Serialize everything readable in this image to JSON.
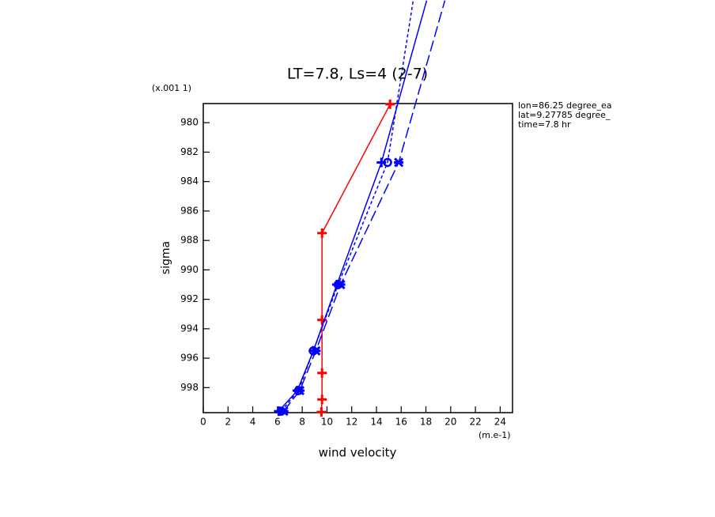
{
  "chart_data": {
    "type": "line",
    "title": "LT=7.8, Ls=4 (2-7)",
    "y_unit_label": "(x.001 1)",
    "ylabel": "sigma",
    "xlabel": "wind velocity",
    "x_unit_label": "(m.e-1)",
    "info": [
      "lon=86.25 degree_ea",
      "lat=9.27785 degree_",
      "time=7.8 hr"
    ],
    "xlim": [
      0,
      25
    ],
    "xticks": [
      0,
      2,
      4,
      6,
      8,
      10,
      12,
      14,
      16,
      18,
      20,
      22,
      24
    ],
    "ylim": [
      978.7,
      999.7
    ],
    "yticks": [
      980,
      982,
      984,
      986,
      988,
      990,
      992,
      994,
      996,
      998
    ],
    "y_inverted": true,
    "series": [
      {
        "color": "#ff0000",
        "dash": "solid",
        "marker": "plus",
        "x": [
          15.1,
          9.6,
          9.6,
          9.6,
          9.6,
          9.55
        ],
        "values": [
          978.75,
          987.5,
          993.4,
          997.0,
          998.8,
          999.65
        ]
      },
      {
        "color": "#0000ff",
        "dash": "solid",
        "marker": "plus",
        "x": [
          6.1,
          7.6,
          8.9,
          10.8,
          14.4,
          18.06
        ],
        "values": [
          999.6,
          998.2,
          995.5,
          991.0,
          982.7,
          971.7
        ]
      },
      {
        "color": "#0000ff",
        "dash": "short",
        "marker": "circle",
        "x": [
          6.3,
          7.7,
          8.9,
          10.9,
          14.9,
          16.97
        ],
        "values": [
          999.6,
          998.2,
          995.5,
          991.0,
          982.7,
          971.7
        ]
      },
      {
        "color": "#0000ff",
        "dash": "long",
        "marker": "x",
        "x": [
          6.5,
          7.8,
          9.1,
          11.1,
          15.8,
          19.53
        ],
        "values": [
          999.6,
          998.2,
          995.5,
          991.0,
          982.7,
          971.7
        ]
      }
    ]
  }
}
